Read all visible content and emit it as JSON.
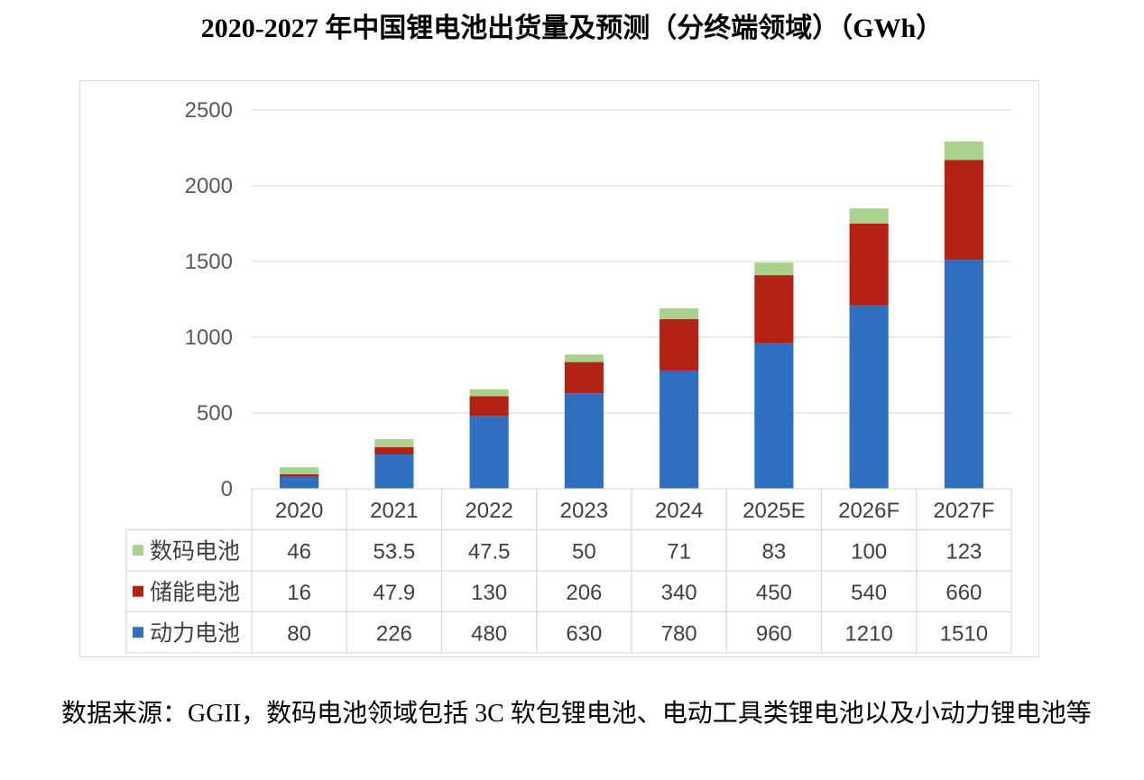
{
  "title": "2020-2027 年中国锂电池出货量及预测（分终端领域）（GWh）",
  "source_note": "数据来源：GGII，数码电池领域包括 3C 软包锂电池、电动工具类锂电池以及小动力锂电池等",
  "chart_data": {
    "type": "bar",
    "stacked": true,
    "categories": [
      "2020",
      "2021",
      "2022",
      "2023",
      "2024",
      "2025E",
      "2026F",
      "2027F"
    ],
    "series": [
      {
        "name": "动力电池",
        "color": "#2e6fbf",
        "values": [
          80,
          226,
          480,
          630,
          780,
          960,
          1210,
          1510
        ],
        "labels": [
          "80",
          "226",
          "480",
          "630",
          "780",
          "960",
          "1210",
          "1510"
        ]
      },
      {
        "name": "储能电池",
        "color": "#b22316",
        "values": [
          16,
          47.9,
          130,
          206,
          340,
          450,
          540,
          660
        ],
        "labels": [
          "16",
          "47.9",
          "130",
          "206",
          "340",
          "450",
          "540",
          "660"
        ]
      },
      {
        "name": "数码电池",
        "color": "#a9d18e",
        "values": [
          46,
          53.5,
          47.5,
          50,
          71,
          83,
          100,
          123
        ],
        "labels": [
          "46",
          "53.5",
          "47.5",
          "50",
          "71",
          "83",
          "100",
          "123"
        ]
      }
    ],
    "table_row_order": [
      "数码电池",
      "储能电池",
      "动力电池"
    ],
    "ylim": [
      0,
      2500
    ],
    "yticks": [
      "0",
      "500",
      "1000",
      "1500",
      "2000",
      "2500"
    ],
    "grid": true,
    "legend": "data-table"
  }
}
